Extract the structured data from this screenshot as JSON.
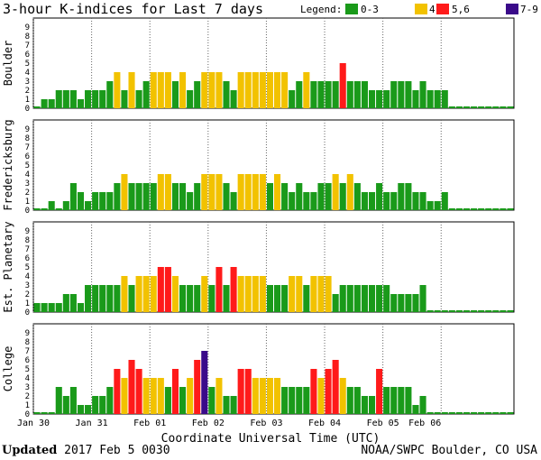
{
  "chart_data": {
    "type": "bar",
    "title": "3-hour K-indices for Last 7 days",
    "xlabel": "Coordinate Universal Time (UTC)",
    "ylim": [
      0,
      9
    ],
    "y_ticks": [
      "0",
      "1",
      "2",
      "3",
      "4",
      "5",
      "6",
      "7",
      "8",
      "9"
    ],
    "x_tick_labels": [
      "Jan 30",
      "Jan 31",
      "Feb 01",
      "Feb 02",
      "Feb 03",
      "Feb 04",
      "Feb 05",
      "Feb 06"
    ],
    "legend": {
      "label": "Legend:",
      "entries": [
        {
          "label": "0-3",
          "color": "#1a9a1a"
        },
        {
          "label": "4",
          "color": "#f2c200"
        },
        {
          "label": "5,6",
          "color": "#ff1a1a"
        },
        {
          "label": "7-9",
          "color": "#3a0a8a"
        }
      ]
    },
    "series": [
      {
        "name": "Boulder",
        "values": [
          0,
          1,
          1,
          2,
          2,
          2,
          1,
          2,
          2,
          2,
          3,
          4,
          2,
          4,
          2,
          3,
          4,
          4,
          4,
          3,
          4,
          2,
          3,
          4,
          4,
          4,
          3,
          2,
          4,
          4,
          4,
          4,
          4,
          4,
          4,
          2,
          3,
          4,
          3,
          3,
          3,
          3,
          5,
          3,
          3,
          3,
          2,
          2,
          2,
          3,
          3,
          3,
          2,
          3,
          2,
          2,
          2,
          0,
          0,
          0,
          0,
          0,
          0,
          0,
          0,
          0
        ]
      },
      {
        "name": "Fredericksburg",
        "values": [
          0,
          0,
          1,
          0,
          1,
          3,
          2,
          1,
          2,
          2,
          2,
          3,
          4,
          3,
          3,
          3,
          3,
          4,
          4,
          3,
          3,
          2,
          3,
          4,
          4,
          4,
          3,
          2,
          4,
          4,
          4,
          4,
          3,
          4,
          3,
          2,
          3,
          2,
          2,
          3,
          3,
          4,
          3,
          4,
          3,
          2,
          2,
          3,
          2,
          2,
          3,
          3,
          2,
          2,
          1,
          1,
          2,
          0,
          0,
          0,
          0,
          0,
          0,
          0,
          0,
          0
        ]
      },
      {
        "name": "Est. Planetary",
        "values": [
          1,
          1,
          1,
          1,
          2,
          2,
          1,
          3,
          3,
          3,
          3,
          3,
          4,
          3,
          4,
          4,
          4,
          5,
          5,
          4,
          3,
          3,
          3,
          4,
          3,
          5,
          3,
          5,
          4,
          4,
          4,
          4,
          3,
          3,
          3,
          4,
          4,
          3,
          4,
          4,
          4,
          2,
          3,
          3,
          3,
          3,
          3,
          3,
          3,
          2,
          2,
          2,
          2,
          3,
          0,
          0,
          0,
          0,
          0,
          0,
          0,
          0,
          0,
          0,
          0,
          0
        ]
      },
      {
        "name": "College",
        "values": [
          0,
          0,
          0,
          3,
          2,
          3,
          1,
          1,
          2,
          2,
          3,
          5,
          4,
          6,
          5,
          4,
          4,
          4,
          3,
          5,
          3,
          4,
          6,
          7,
          3,
          4,
          2,
          2,
          5,
          5,
          4,
          4,
          4,
          4,
          3,
          3,
          3,
          3,
          5,
          4,
          5,
          6,
          4,
          3,
          3,
          2,
          2,
          5,
          3,
          3,
          3,
          3,
          1,
          2,
          0,
          0,
          0,
          0,
          0,
          0,
          0,
          0,
          0,
          0,
          0,
          0
        ]
      }
    ]
  },
  "footer": {
    "updated_label": "Updated",
    "updated_value": "2017 Feb  5 0030",
    "source": "NOAA/SWPC Boulder, CO USA"
  }
}
